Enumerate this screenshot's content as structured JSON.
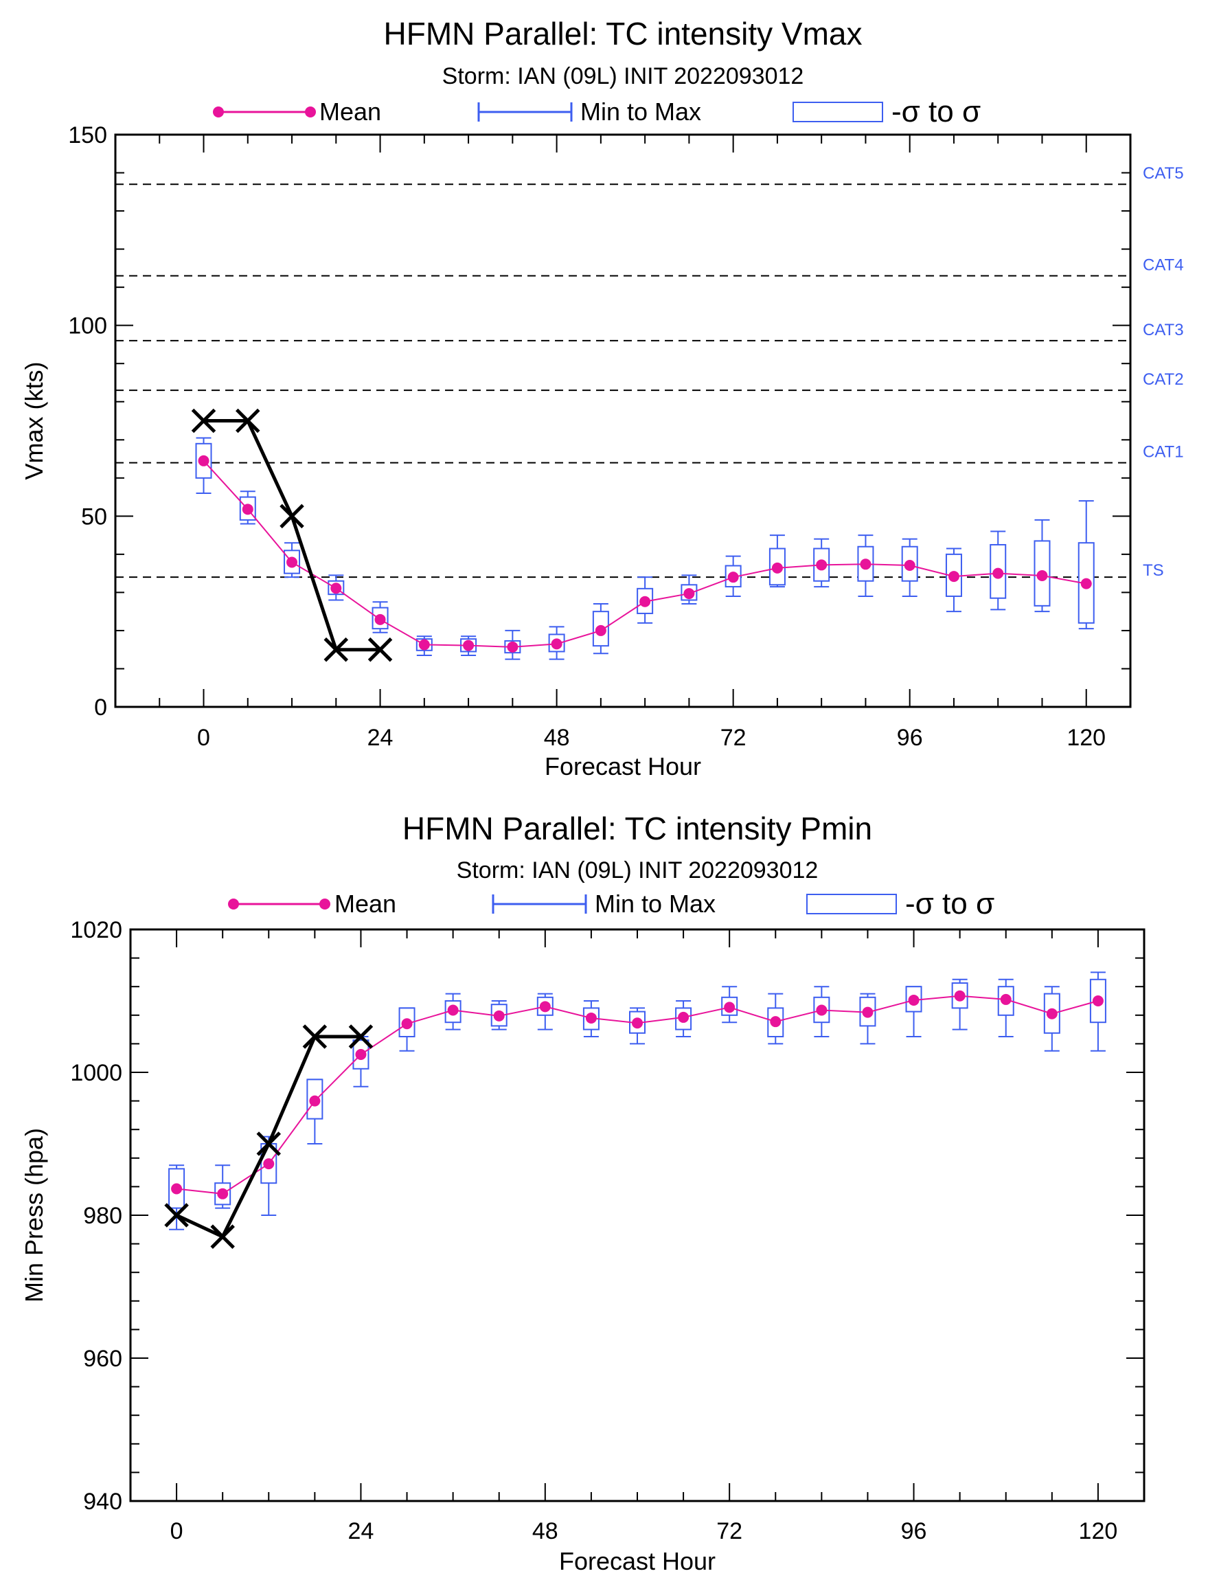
{
  "chart_data": [
    {
      "type": "line",
      "title": "HFMN Parallel: TC intensity Vmax",
      "subtitle": "Storm: IAN (09L) INIT 2022093012",
      "xlabel": "Forecast Hour",
      "ylabel": "Vmax (kts)",
      "xlim": [
        -12,
        126
      ],
      "ylim": [
        0,
        150
      ],
      "xticks": [
        0,
        24,
        48,
        72,
        96,
        120
      ],
      "yticks": [
        0,
        50,
        100,
        150
      ],
      "legend": {
        "placement": "top",
        "mean": "Mean",
        "minmax": "Min to Max",
        "sigma": "-σ to σ"
      },
      "colors": {
        "mean": "#e8139a",
        "box": "#3d5ef0",
        "observed": "#000000",
        "category": "#3d5ef0"
      },
      "categories": [
        {
          "name": "TS",
          "value": 34
        },
        {
          "name": "CAT1",
          "value": 64
        },
        {
          "name": "CAT2",
          "value": 83
        },
        {
          "name": "CAT3",
          "value": 96
        },
        {
          "name": "CAT4",
          "value": 113
        },
        {
          "name": "CAT5",
          "value": 137
        }
      ],
      "x": [
        0,
        6,
        12,
        18,
        24,
        30,
        36,
        42,
        48,
        54,
        60,
        66,
        72,
        78,
        84,
        90,
        96,
        102,
        108,
        114,
        120
      ],
      "series": [
        {
          "name": "Mean",
          "values": [
            64.5,
            51.8,
            37.9,
            31.1,
            22.9,
            16.3,
            16.1,
            15.7,
            16.5,
            20.0,
            27.6,
            29.7,
            34.0,
            36.4,
            37.2,
            37.4,
            37.1,
            34.2,
            35.0,
            34.4,
            32.3
          ]
        }
      ],
      "boxes": {
        "sigma_low": [
          60,
          49,
          35,
          29.5,
          20.5,
          14.8,
          14.5,
          14.2,
          14.5,
          16,
          24.5,
          28,
          31.5,
          32,
          33,
          33,
          33,
          29,
          28.5,
          26.5,
          22
        ],
        "sigma_high": [
          69,
          55,
          41,
          33,
          26,
          17.8,
          17.8,
          17.3,
          19,
          25,
          31,
          32,
          37,
          41.5,
          41.5,
          42,
          42,
          40,
          42.5,
          43.5,
          43
        ],
        "min": [
          56,
          48,
          34,
          28,
          19.5,
          13.5,
          13.5,
          12.5,
          12.5,
          14,
          22,
          27,
          29,
          31.5,
          31.5,
          29,
          29,
          25,
          25.5,
          25,
          20.5
        ],
        "max": [
          70.5,
          56.5,
          43,
          34.5,
          27.5,
          18.5,
          18.5,
          20,
          21,
          27,
          34,
          34.5,
          39.5,
          45,
          44,
          45,
          44,
          41.5,
          46,
          49,
          54
        ]
      },
      "observed": {
        "x": [
          0,
          6,
          12,
          18,
          24
        ],
        "values": [
          75,
          75,
          50,
          15,
          15
        ]
      }
    },
    {
      "type": "line",
      "title": "HFMN Parallel: TC intensity Pmin",
      "subtitle": "Storm: IAN (09L) INIT 2022093012",
      "xlabel": "Forecast Hour",
      "ylabel": "Min Press (hpa)",
      "xlim": [
        -6,
        126
      ],
      "ylim": [
        940,
        1020
      ],
      "xticks": [
        0,
        24,
        48,
        72,
        96,
        120
      ],
      "yticks": [
        940,
        960,
        980,
        1000,
        1020
      ],
      "legend": {
        "placement": "top",
        "mean": "Mean",
        "minmax": "Min to Max",
        "sigma": "-σ to σ"
      },
      "colors": {
        "mean": "#e8139a",
        "box": "#3d5ef0",
        "observed": "#000000"
      },
      "x": [
        0,
        6,
        12,
        18,
        24,
        30,
        36,
        42,
        48,
        54,
        60,
        66,
        72,
        78,
        84,
        90,
        96,
        102,
        108,
        114,
        120
      ],
      "series": [
        {
          "name": "Mean",
          "values": [
            983.7,
            983.0,
            987.2,
            996.0,
            1002.5,
            1006.8,
            1008.7,
            1007.9,
            1009.2,
            1007.6,
            1006.9,
            1007.7,
            1009.1,
            1007.1,
            1008.7,
            1008.4,
            1010.1,
            1010.7,
            1010.2,
            1008.2,
            1010.0
          ]
        }
      ],
      "boxes": {
        "sigma_low": [
          981,
          981.5,
          984.5,
          993.5,
          1000.5,
          1005,
          1007,
          1006.5,
          1008,
          1006,
          1005.5,
          1006,
          1008,
          1005,
          1007,
          1006.5,
          1008.5,
          1009,
          1008,
          1005.5,
          1007
        ],
        "sigma_high": [
          986.5,
          984.5,
          990,
          999,
          1004.5,
          1009,
          1010,
          1009.5,
          1010.5,
          1009,
          1008.5,
          1009,
          1010.5,
          1009,
          1010.5,
          1010.5,
          1012,
          1012.5,
          1012,
          1011,
          1013
        ],
        "min": [
          978,
          981,
          980,
          990,
          998,
          1003,
          1006,
          1006,
          1006,
          1005,
          1004,
          1005,
          1007,
          1004,
          1005,
          1004,
          1005,
          1006,
          1005,
          1003,
          1003
        ],
        "max": [
          987,
          987,
          991,
          999,
          1005,
          1009,
          1011,
          1010,
          1011,
          1010,
          1009,
          1010,
          1012,
          1011,
          1012,
          1011,
          1012,
          1013,
          1013,
          1012,
          1014
        ]
      },
      "observed": {
        "x": [
          0,
          6,
          12,
          18,
          24
        ],
        "values": [
          980,
          977,
          990,
          1005,
          1005
        ]
      }
    }
  ]
}
